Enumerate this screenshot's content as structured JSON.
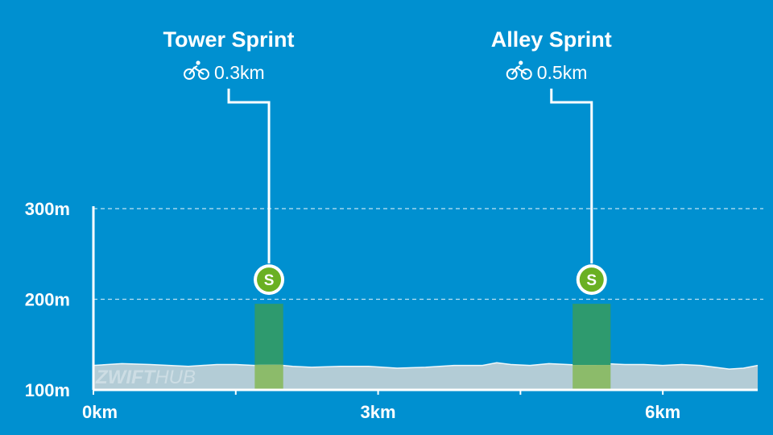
{
  "colors": {
    "background": "#0090d0",
    "profile_fill": "#b3ccd6",
    "segment_fill": "#2e9a6e",
    "segment_fill_low": "#8cbb6a",
    "badge": "#6ab023",
    "foreground": "#ffffff"
  },
  "watermark": {
    "text_a": "ZWIFT",
    "text_b": "HUB"
  },
  "chart_data": {
    "type": "area",
    "xlabel": "",
    "ylabel": "",
    "xlim": [
      0,
      7
    ],
    "ylim": [
      100,
      300
    ],
    "x_ticks": [
      {
        "value": 0,
        "label": "0km"
      },
      {
        "value": 1.5,
        "label": ""
      },
      {
        "value": 3,
        "label": "3km"
      },
      {
        "value": 4.5,
        "label": ""
      },
      {
        "value": 6,
        "label": "6km"
      }
    ],
    "y_ticks": [
      {
        "value": 100,
        "label": "100m"
      },
      {
        "value": 200,
        "label": "200m",
        "gridline": true
      },
      {
        "value": 300,
        "label": "300m",
        "gridline": true
      }
    ],
    "profile": {
      "x": [
        0,
        0.3,
        0.6,
        1.0,
        1.3,
        1.5,
        1.7,
        1.9,
        2.1,
        2.3,
        2.6,
        2.9,
        3.2,
        3.5,
        3.8,
        4.1,
        4.25,
        4.4,
        4.6,
        4.8,
        5.0,
        5.2,
        5.4,
        5.6,
        5.8,
        6.0,
        6.2,
        6.4,
        6.55,
        6.7,
        6.85,
        7.0
      ],
      "y": [
        127,
        129,
        128,
        126,
        128,
        128,
        127,
        128,
        126,
        125,
        126,
        126,
        124,
        125,
        127,
        127,
        130,
        128,
        127,
        129,
        128,
        127,
        129,
        128,
        128,
        127,
        128,
        127,
        125,
        123,
        124,
        127
      ]
    },
    "segments": [
      {
        "name": "Tower Sprint",
        "icon": "bike-icon",
        "distance_label": "0.3km",
        "start_km": 1.7,
        "end_km": 2.0,
        "badge": "S",
        "bar_top": 195
      },
      {
        "name": "Alley Sprint",
        "icon": "bike-icon",
        "distance_label": "0.5km",
        "start_km": 5.05,
        "end_km": 5.45,
        "badge": "S",
        "bar_top": 195
      }
    ]
  }
}
